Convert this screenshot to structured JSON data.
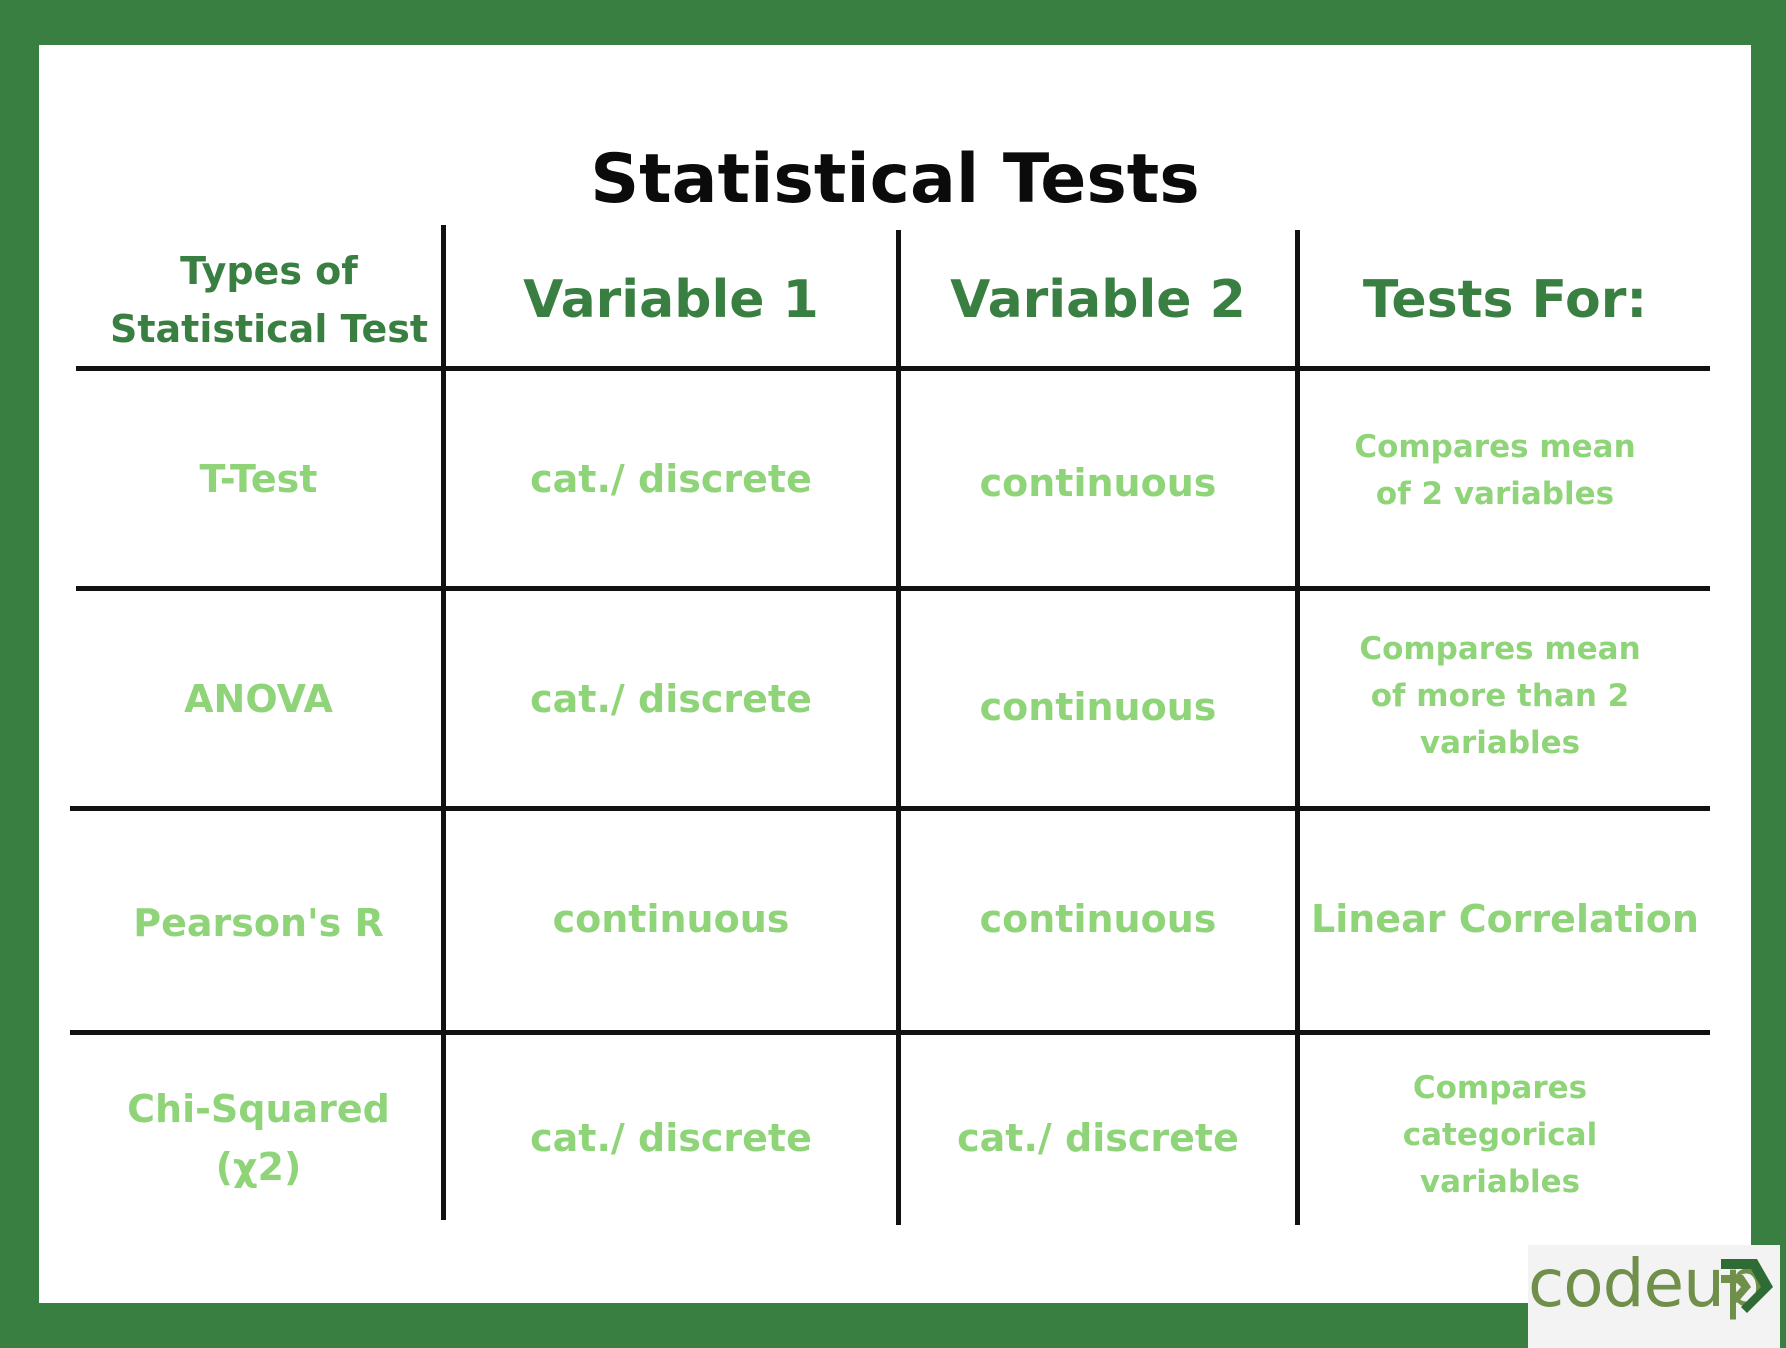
{
  "title": "Statistical Tests",
  "headers": {
    "type": "Types of Statistical Test",
    "var1": "Variable 1",
    "var2": "Variable 2",
    "tests_for": "Tests For:"
  },
  "rows": [
    {
      "name": "T-Test",
      "var1": "cat./ discrete",
      "var2": "continuous",
      "tests_for": "Compares mean of 2 variables"
    },
    {
      "name": "ANOVA",
      "var1": "cat./ discrete",
      "var2": "continuous",
      "tests_for": "Compares mean of more than 2 variables"
    },
    {
      "name": "Pearson's R",
      "var1": "continuous",
      "var2": "continuous",
      "tests_for": "Linear Correlation"
    },
    {
      "name": "Chi-Squared (χ2)",
      "var1": "cat./ discrete",
      "var2": "cat./ discrete",
      "tests_for": "Compares categorical variables"
    }
  ],
  "logo": {
    "text": "codeup",
    "icon": "double-chevron-logo-mark"
  },
  "colors": {
    "frame": "#3a7f42",
    "header_text": "#3a7f42",
    "cell_text": "#8fd479",
    "title_text": "#0b0b0b",
    "logo_text": "#6f8f4a"
  }
}
